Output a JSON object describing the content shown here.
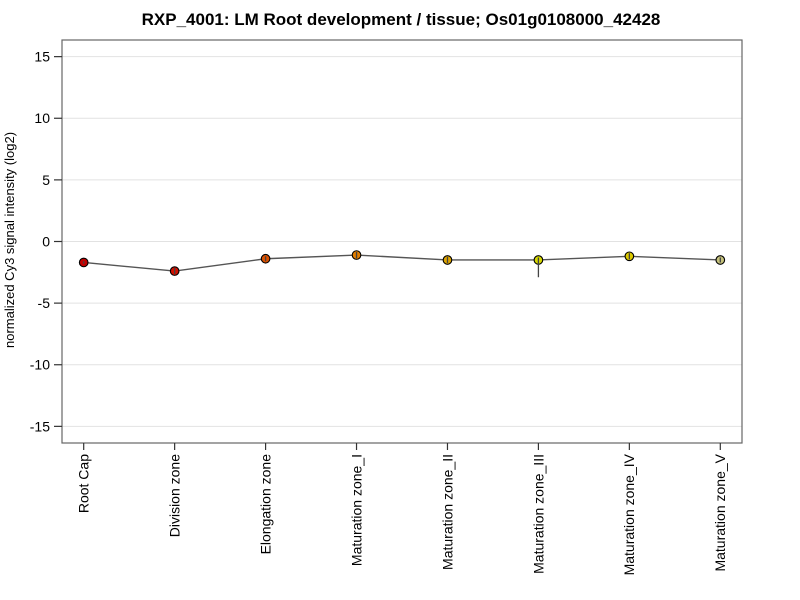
{
  "chart_data": {
    "type": "line",
    "title": "RXP_4001: LM Root development / tissue; Os01g0108000_42428",
    "ylabel": "normalized Cy3 signal intensity (log2)",
    "xlabel": "",
    "ylim": [
      -16.35,
      16.35
    ],
    "yticks": [
      15,
      10,
      5,
      0,
      -5,
      -10,
      -15
    ],
    "grid": "horizontal",
    "legend": "none",
    "categories": [
      "Root Cap",
      "Division zone",
      "Elongation zone",
      "Maturation zone_I",
      "Maturation zone_II",
      "Maturation zone_III",
      "Maturation zone_IV",
      "Maturation zone_V"
    ],
    "series": [
      {
        "name": "normalized Cy3 signal intensity (log2)",
        "values": [
          -1.7,
          -2.4,
          -1.4,
          -1.1,
          -1.5,
          -1.5,
          -1.2,
          -1.5
        ],
        "err_low": [
          -1.8,
          -2.65,
          -1.6,
          -1.35,
          -1.75,
          -2.9,
          -1.45,
          -1.7
        ],
        "err_high": [
          -1.6,
          -2.15,
          -1.2,
          -0.85,
          -1.25,
          -1.3,
          -0.95,
          -1.3
        ],
        "point_colors": [
          "#c00000",
          "#d01000",
          "#dd5200",
          "#e07d00",
          "#dda300",
          "#d6d800",
          "#ddca00",
          "#c5c27c"
        ]
      }
    ],
    "colors": {
      "line": "#555555",
      "frame": "#666666",
      "grid": "#e2e2e2",
      "tick": "#333333",
      "error_bar": "#444444",
      "marker_stroke": "#000000",
      "background": "#ffffff"
    }
  }
}
